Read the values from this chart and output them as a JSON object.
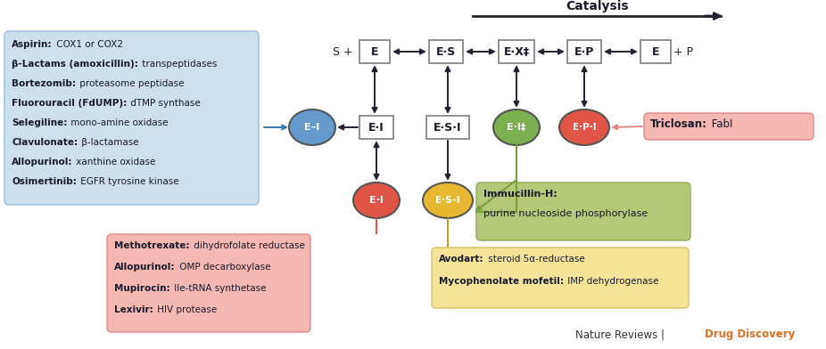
{
  "bg_color": "#ffffff",
  "catalysis_title": "Catalysis",
  "arrow_color": "#222233",
  "box_edge": "#888888",
  "blue_box_bg": "#cce0f0",
  "blue_box_edge": "#99bbdd",
  "red_box_bg": "#f5b8b0",
  "red_box_edge": "#e08888",
  "green_box_bg": "#b5c878",
  "green_box_edge": "#8faa50",
  "yellow_box_bg": "#f5e498",
  "yellow_box_edge": "#d4c060",
  "triclosan_box_bg": "#f5b8b0",
  "triclosan_box_edge": "#e08888",
  "circle_blue": "#6699cc",
  "circle_red": "#e05545",
  "circle_green": "#7ab050",
  "circle_yellow": "#e8b830",
  "nr_color": "#333333",
  "dd_color": "#e07020",
  "blue_box_items": [
    {
      "bold": "Aspirin:",
      "rest": " COX1 or COX2"
    },
    {
      "bold": "β-Lactams (amoxicillin):",
      "rest": " transpeptidases"
    },
    {
      "bold": "Bortezomib:",
      "rest": " proteasome peptidase"
    },
    {
      "bold": "Fluorouracil (FdUMP):",
      "rest": " dTMP synthase"
    },
    {
      "bold": "Selegiline:",
      "rest": " mono-amine oxidase"
    },
    {
      "bold": "Clavulonate:",
      "rest": " β-lactamase"
    },
    {
      "bold": "Allopurinol:",
      "rest": " xanthine oxidase"
    },
    {
      "bold": "Osimertinib:",
      "rest": " EGFR tyrosine kinase"
    }
  ],
  "red_box_items": [
    {
      "bold": "Methotrexate:",
      "rest": " dihydrofolate reductase"
    },
    {
      "bold": "Allopurinol:",
      "rest": " OMP decarboxylase"
    },
    {
      "bold": "Mupirocin:",
      "rest": " Ile-tRNA synthetase"
    },
    {
      "bold": "Lexivir:",
      "rest": " HIV protease"
    }
  ],
  "green_line1_bold": "Immucillin-H:",
  "green_line1_rest": "",
  "green_line2": "purine nucleoside phosphorylase",
  "yellow_box_items": [
    {
      "bold": "Avodart:",
      "rest": " steroid 5α-reductase"
    },
    {
      "bold": "Mycophenolate mofetil:",
      "rest": " IMP dehydrogenase"
    }
  ],
  "triclosan_bold": "Triclosan:",
  "triclosan_rest": " FabI"
}
